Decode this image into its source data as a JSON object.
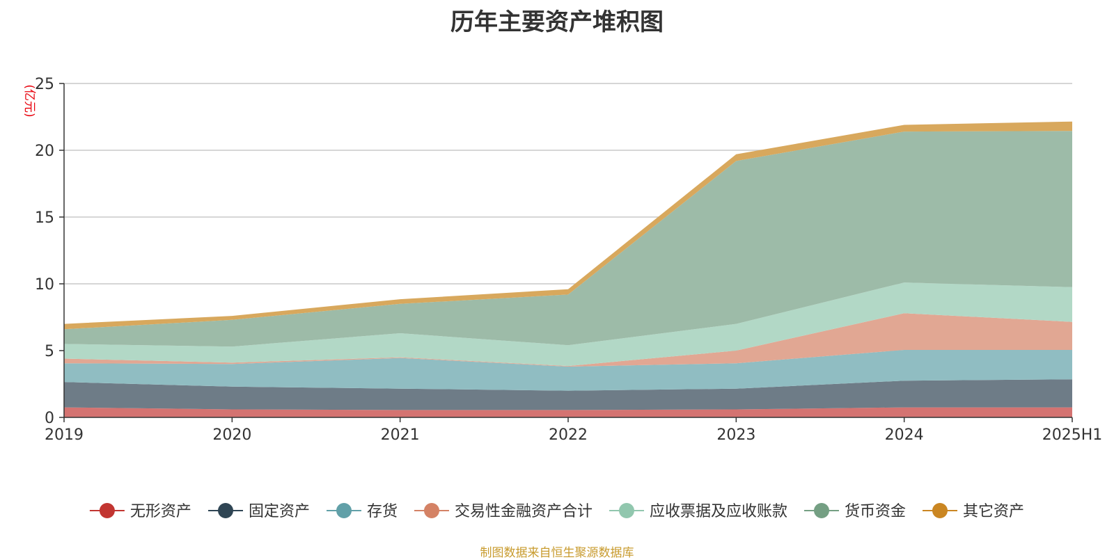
{
  "chart_data": {
    "type": "area",
    "stacked": true,
    "title": "历年主要资产堆积图",
    "ylabel": "(亿元)",
    "xlabel": "",
    "categories": [
      "2019",
      "2020",
      "2021",
      "2022",
      "2023",
      "2024",
      "2025H1"
    ],
    "ylim": [
      0,
      25
    ],
    "yticks": [
      0,
      5,
      10,
      15,
      20,
      25
    ],
    "grid": true,
    "legend_position": "bottom",
    "series": [
      {
        "name": "无形资产",
        "color": "#c23531",
        "fill": "#d47371",
        "values": [
          0.75,
          0.6,
          0.55,
          0.55,
          0.6,
          0.75,
          0.75
        ]
      },
      {
        "name": "固定资产",
        "color": "#2f4554",
        "fill": "#6e7c87",
        "values": [
          1.9,
          1.7,
          1.6,
          1.45,
          1.55,
          2.0,
          2.1
        ]
      },
      {
        "name": "存货",
        "color": "#61a0a8",
        "fill": "#90bdc2",
        "values": [
          1.4,
          1.7,
          2.3,
          1.8,
          1.9,
          2.3,
          2.2
        ]
      },
      {
        "name": "交易性金融资产合计",
        "color": "#d48265",
        "fill": "#e1a793",
        "values": [
          0.35,
          0.1,
          0.05,
          0.05,
          0.95,
          2.75,
          2.1
        ]
      },
      {
        "name": "应收票据及应收账款",
        "color": "#91c7ae",
        "fill": "#b2d8c6",
        "values": [
          1.1,
          1.2,
          1.8,
          1.55,
          2.0,
          2.3,
          2.6
        ]
      },
      {
        "name": "货币资金",
        "color": "#749f83",
        "fill": "#9dbba8",
        "values": [
          1.1,
          2.0,
          2.2,
          3.8,
          12.2,
          11.3,
          11.7
        ]
      },
      {
        "name": "其它资产",
        "color": "#ca8622",
        "fill": "#d8a85d",
        "values": [
          0.4,
          0.3,
          0.35,
          0.4,
          0.5,
          0.5,
          0.7
        ]
      }
    ]
  },
  "source_note": "制图数据来自恒生聚源数据库"
}
